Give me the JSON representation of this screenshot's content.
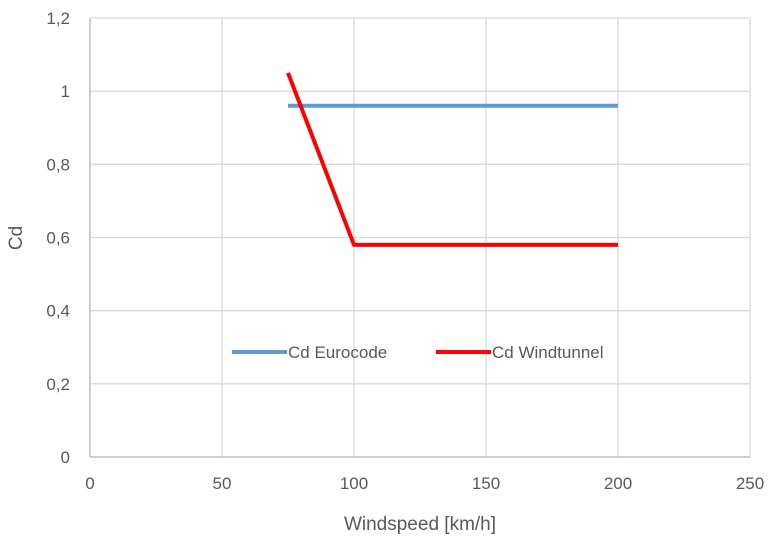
{
  "chart_data": {
    "type": "line",
    "title": "",
    "xlabel": "Windspeed [km/h]",
    "ylabel": "Cd",
    "xlim": [
      0,
      250
    ],
    "ylim": [
      0,
      1.2
    ],
    "x_ticks": [
      0,
      50,
      100,
      150,
      200,
      250
    ],
    "y_ticks": [
      0,
      0.2,
      0.4,
      0.6,
      0.8,
      1,
      1.2
    ],
    "x_tick_labels": [
      "0",
      "50",
      "100",
      "150",
      "200",
      "250"
    ],
    "y_tick_labels": [
      "0",
      "0,2",
      "0,4",
      "0,6",
      "0,8",
      "1",
      "1,2"
    ],
    "grid": true,
    "legend_position": "inside-lower-center",
    "series": [
      {
        "name": "Cd Eurocode",
        "color": "#5b9bd5",
        "points": [
          [
            75,
            0.96
          ],
          [
            200,
            0.96
          ]
        ]
      },
      {
        "name": "Cd Windtunnel",
        "color": "#ff0000",
        "points": [
          [
            75,
            1.05
          ],
          [
            100,
            0.58
          ],
          [
            200,
            0.58
          ]
        ]
      }
    ]
  }
}
